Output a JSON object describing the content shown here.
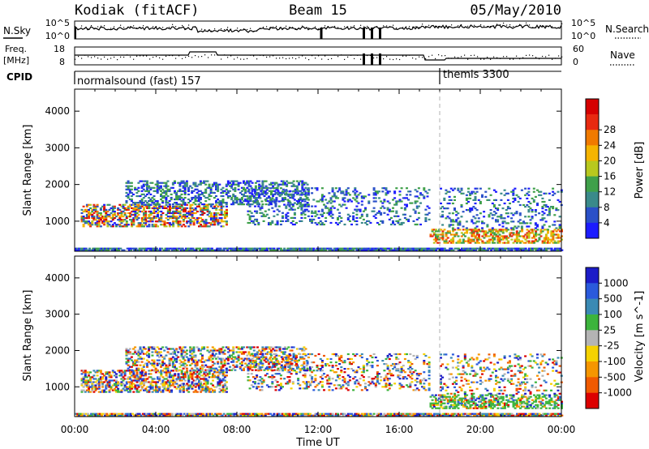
{
  "header": {
    "station": "Kodiak (fitACF)",
    "beam": "Beam 15",
    "date": "05/May/2010"
  },
  "param_panels": {
    "noise": {
      "left_label": "N.Sky",
      "right_label": "N.Search",
      "left_ticks": [
        "10^5",
        "10^0"
      ],
      "right_ticks": [
        "10^5",
        "10^0"
      ]
    },
    "freq": {
      "left_label_line1": "Freq.",
      "left_label_line2": "[MHz]",
      "right_label": "Nave",
      "left_ticks": [
        "18",
        "8"
      ],
      "right_ticks": [
        "60",
        "0"
      ]
    },
    "cpid": {
      "label": "CPID",
      "programs": [
        {
          "name": "normalsound (fast) 157",
          "start_hour": 0
        },
        {
          "name": "themis 3300",
          "start_hour": 18
        }
      ]
    }
  },
  "chart_data": [
    {
      "type": "heatmap",
      "title": "",
      "xlabel": "Time UT",
      "ylabel": "Slant Range [km]",
      "xlim": [
        0,
        24
      ],
      "ylim": [
        180,
        4600
      ],
      "x_ticks": [
        "00:00",
        "04:00",
        "08:00",
        "12:00",
        "16:00",
        "20:00",
        "00:00"
      ],
      "y_ticks": [
        1000,
        2000,
        3000,
        4000
      ],
      "colorbar": {
        "label": "Power [dB]",
        "ticks": [
          "4",
          "8",
          "12",
          "16",
          "20",
          "24",
          "28"
        ],
        "colors": [
          "#1c1cff",
          "#2a50c8",
          "#3a8a8a",
          "#3fa04a",
          "#b8c81e",
          "#f5b400",
          "#f07a00",
          "#e82a10",
          "#d60000"
        ],
        "range": [
          0,
          30
        ]
      }
    },
    {
      "type": "heatmap",
      "title": "",
      "xlabel": "Time UT",
      "ylabel": "Slant Range [km]",
      "xlim": [
        0,
        24
      ],
      "ylim": [
        180,
        4600
      ],
      "x_ticks": [
        "00:00",
        "04:00",
        "08:00",
        "12:00",
        "16:00",
        "20:00",
        "00:00"
      ],
      "y_ticks": [
        1000,
        2000,
        3000,
        4000
      ],
      "colorbar": {
        "label": "Velocity [m s^-1]",
        "ticks": [
          "1000",
          "500",
          "100",
          "25",
          "-25",
          "-100",
          "-500",
          "-1000"
        ],
        "colors": [
          "#1c1cc8",
          "#2a5adc",
          "#3a8ab4",
          "#3cb43c",
          "#b4b4b4",
          "#f5d200",
          "#f59600",
          "#f05a00",
          "#dc0000"
        ],
        "range": [
          -1200,
          1200
        ]
      }
    }
  ]
}
